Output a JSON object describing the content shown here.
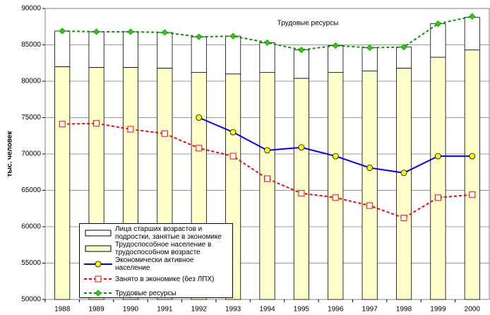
{
  "chart_data": {
    "type": "bar",
    "annotation": "Трудовые ресурсы",
    "y_label": "тыс. человек",
    "categories": [
      "1988",
      "1989",
      "1990",
      "1991",
      "1992",
      "1993",
      "1994",
      "1995",
      "1996",
      "1997",
      "1998",
      "1999",
      "2000"
    ],
    "ylim": [
      50000,
      90000
    ],
    "yticks": [
      50000,
      55000,
      60000,
      65000,
      70000,
      75000,
      80000,
      85000,
      90000
    ],
    "grid": true,
    "series": [
      {
        "name": "Лица старших возрастов и подростки, занятые в экономике",
        "kind": "bar",
        "color": "#ffffff",
        "values": [
          4900,
          4900,
          4900,
          4900,
          4900,
          5200,
          4100,
          3900,
          3700,
          3200,
          2900,
          4600,
          4500
        ]
      },
      {
        "name": "Трудоспособное население в трудоспособном возрасте",
        "kind": "bar",
        "color": "#ffffcc",
        "values": [
          82000,
          81900,
          81900,
          81800,
          81200,
          81000,
          81200,
          80400,
          81200,
          81400,
          81800,
          83300,
          84300
        ]
      },
      {
        "name": "Экономически активное население",
        "kind": "line",
        "color": "#0000ff",
        "marker": "circle",
        "dashed": false,
        "values": [
          null,
          null,
          null,
          null,
          75000,
          73000,
          70500,
          70900,
          69700,
          68100,
          67400,
          69700,
          69700
        ]
      },
      {
        "name": "Занято в экономике (без ЛПХ)",
        "kind": "line",
        "color": "#ff0000",
        "marker": "square",
        "dashed": true,
        "values": [
          74100,
          74200,
          73400,
          72800,
          70800,
          69700,
          66600,
          64600,
          64000,
          62900,
          61200,
          64000,
          64400
        ]
      },
      {
        "name": "Трудовые ресурсы",
        "kind": "line",
        "color": "#009900",
        "marker": "diamond",
        "dashed": true,
        "values": [
          86900,
          86800,
          86800,
          86700,
          86100,
          86200,
          85300,
          84300,
          84900,
          84600,
          84700,
          87900,
          88900
        ]
      }
    ]
  }
}
